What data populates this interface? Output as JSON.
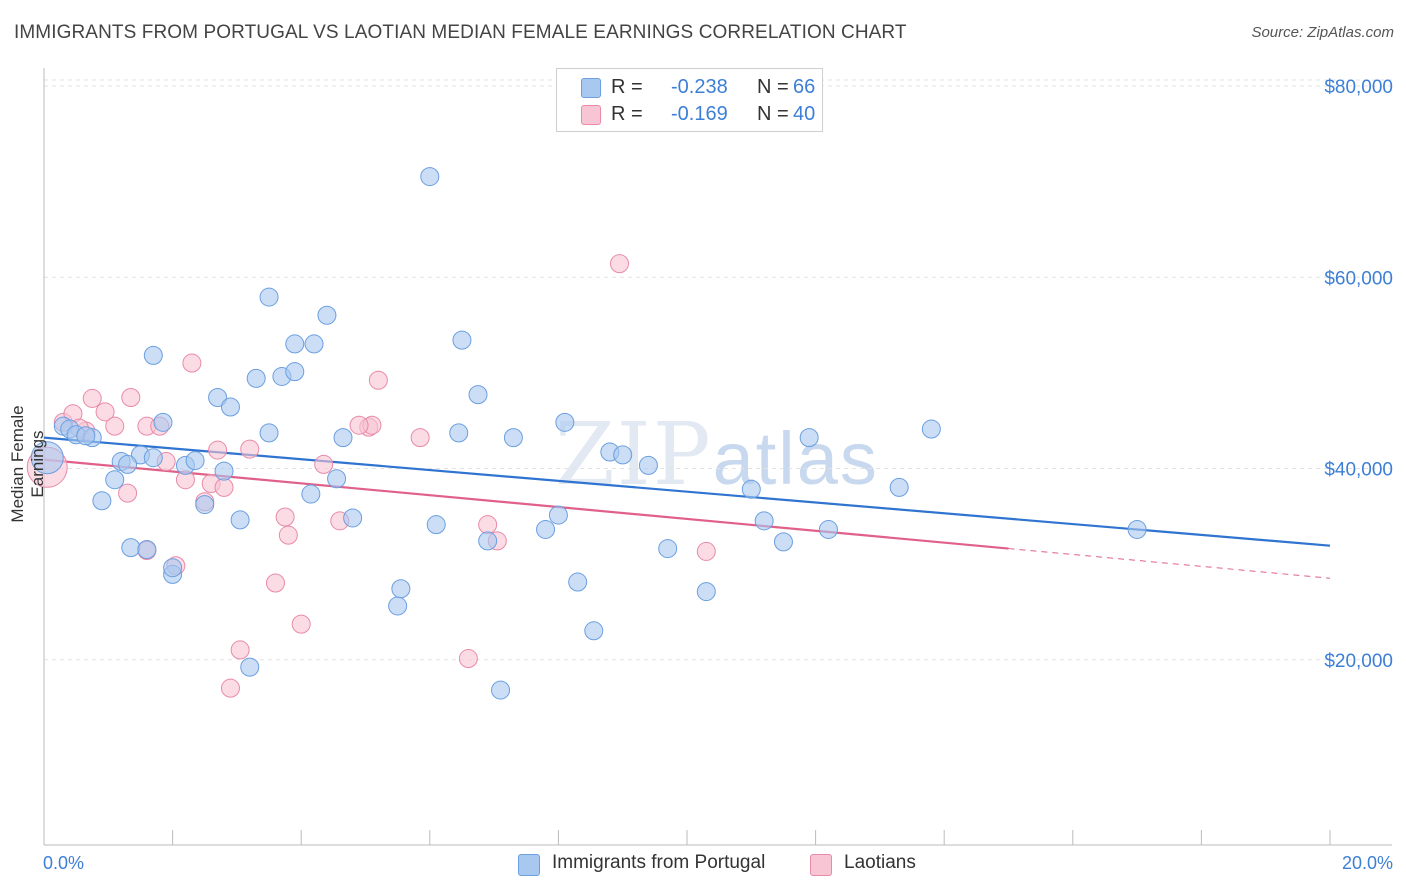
{
  "title": "IMMIGRANTS FROM PORTUGAL VS LAOTIAN MEDIAN FEMALE EARNINGS CORRELATION CHART",
  "source": "Source: ZipAtlas.com",
  "watermark": {
    "zip": "ZIP",
    "atlas": "atlas"
  },
  "legend": {
    "rows": [
      {
        "r_label": "R =",
        "r_value": "-0.238",
        "n_label": "N =",
        "n_value": "66",
        "color": "#a9c8f0",
        "border": "#6b9fe0"
      },
      {
        "r_label": "R =",
        "r_value": "-0.169",
        "n_label": "N =",
        "n_value": "40",
        "color": "#f8c5d4",
        "border": "#e98aa8"
      }
    ]
  },
  "bottom_legend": [
    {
      "label": "Immigrants from Portugal",
      "color": "#a9c8f0",
      "border": "#6b9fe0"
    },
    {
      "label": "Laotians",
      "color": "#f8c5d4",
      "border": "#e98aa8"
    }
  ],
  "colors": {
    "blue_fill": "#a9c8f0",
    "blue_stroke": "#6b9fe0",
    "blue_line": "#2f74d0",
    "pink_fill": "#f8c5d4",
    "pink_stroke": "#e98aa8",
    "pink_line": "#e0608a",
    "tick_label": "#3d7fd6"
  },
  "chart_data": {
    "type": "scatter",
    "title": "IMMIGRANTS FROM PORTUGAL VS LAOTIAN MEDIAN FEMALE EARNINGS CORRELATION CHART",
    "xlabel": "",
    "ylabel": "Median Female Earnings",
    "xlim": [
      0,
      20
    ],
    "ylim": [
      0,
      80000
    ],
    "x_tick_labels": [
      "0.0%",
      "20.0%"
    ],
    "y_ticks": [
      20000,
      40000,
      60000,
      80000
    ],
    "y_tick_labels": [
      "$20,000",
      "$40,000",
      "$60,000",
      "$80,000"
    ],
    "grid": true,
    "legend_position": "top-center",
    "series": [
      {
        "name": "Immigrants from Portugal",
        "trend": {
          "x": [
            0,
            20
          ],
          "y": [
            42600,
            31300
          ]
        },
        "points": [
          [
            0.05,
            40500
          ],
          [
            0.3,
            43800
          ],
          [
            0.4,
            43500
          ],
          [
            0.5,
            42900
          ],
          [
            0.75,
            42600
          ],
          [
            0.9,
            36000
          ],
          [
            1.1,
            38200
          ],
          [
            1.2,
            40100
          ],
          [
            1.35,
            31100
          ],
          [
            1.5,
            40800
          ],
          [
            1.6,
            30900
          ],
          [
            1.7,
            51200
          ],
          [
            1.7,
            40500
          ],
          [
            1.85,
            44200
          ],
          [
            2.0,
            28300
          ],
          [
            2.2,
            39700
          ],
          [
            2.35,
            40200
          ],
          [
            2.5,
            35600
          ],
          [
            2.7,
            46800
          ],
          [
            2.8,
            39100
          ],
          [
            2.9,
            45800
          ],
          [
            3.05,
            34000
          ],
          [
            3.3,
            48800
          ],
          [
            3.5,
            57300
          ],
          [
            3.5,
            43100
          ],
          [
            3.7,
            49000
          ],
          [
            3.9,
            49500
          ],
          [
            3.9,
            52400
          ],
          [
            4.15,
            36700
          ],
          [
            4.2,
            52400
          ],
          [
            4.4,
            55400
          ],
          [
            4.55,
            38300
          ],
          [
            4.65,
            42600
          ],
          [
            4.8,
            34200
          ],
          [
            5.5,
            25000
          ],
          [
            5.55,
            26800
          ],
          [
            6.0,
            69900
          ],
          [
            6.1,
            33500
          ],
          [
            6.45,
            43100
          ],
          [
            6.5,
            52800
          ],
          [
            6.75,
            47100
          ],
          [
            6.9,
            31800
          ],
          [
            7.1,
            16200
          ],
          [
            7.3,
            42600
          ],
          [
            7.8,
            33000
          ],
          [
            8.0,
            34500
          ],
          [
            8.1,
            44200
          ],
          [
            8.3,
            27500
          ],
          [
            8.55,
            22400
          ],
          [
            8.8,
            41100
          ],
          [
            9.0,
            40800
          ],
          [
            9.4,
            39700
          ],
          [
            9.7,
            31000
          ],
          [
            10.3,
            26500
          ],
          [
            11.0,
            37200
          ],
          [
            11.2,
            33900
          ],
          [
            11.5,
            31700
          ],
          [
            11.9,
            42600
          ],
          [
            12.2,
            33000
          ],
          [
            13.3,
            37400
          ],
          [
            13.8,
            43500
          ],
          [
            17.0,
            33000
          ],
          [
            2.0,
            29000
          ],
          [
            3.2,
            18600
          ],
          [
            0.65,
            42800
          ],
          [
            1.3,
            39800
          ]
        ]
      },
      {
        "name": "Laotians",
        "trend": {
          "x": [
            0,
            15
          ],
          "y": [
            40300,
            31000
          ]
        },
        "trend_dashed": {
          "x": [
            15,
            20
          ],
          "y": [
            31000,
            27900
          ]
        },
        "points": [
          [
            0.05,
            39500
          ],
          [
            0.3,
            44200
          ],
          [
            0.45,
            45100
          ],
          [
            0.65,
            43300
          ],
          [
            0.75,
            46700
          ],
          [
            0.95,
            45300
          ],
          [
            1.1,
            43800
          ],
          [
            1.3,
            36800
          ],
          [
            1.35,
            46800
          ],
          [
            1.6,
            43800
          ],
          [
            1.6,
            30800
          ],
          [
            1.8,
            43800
          ],
          [
            1.9,
            40100
          ],
          [
            2.05,
            29200
          ],
          [
            2.2,
            38200
          ],
          [
            2.3,
            50400
          ],
          [
            2.5,
            35900
          ],
          [
            2.6,
            37800
          ],
          [
            2.7,
            41300
          ],
          [
            2.8,
            37400
          ],
          [
            2.9,
            16400
          ],
          [
            3.05,
            20400
          ],
          [
            3.2,
            41400
          ],
          [
            3.6,
            27400
          ],
          [
            3.75,
            34300
          ],
          [
            3.8,
            32400
          ],
          [
            4.0,
            23100
          ],
          [
            4.35,
            39800
          ],
          [
            4.6,
            33900
          ],
          [
            5.05,
            43700
          ],
          [
            5.1,
            43900
          ],
          [
            5.2,
            48600
          ],
          [
            5.85,
            42600
          ],
          [
            6.6,
            19500
          ],
          [
            6.9,
            33500
          ],
          [
            7.05,
            31800
          ],
          [
            8.95,
            60800
          ],
          [
            10.3,
            30700
          ],
          [
            0.55,
            43600
          ],
          [
            4.9,
            43900
          ]
        ]
      }
    ]
  }
}
